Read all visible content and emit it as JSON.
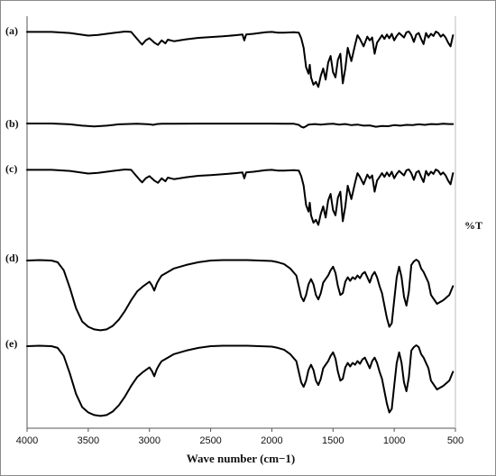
{
  "chart_data": {
    "type": "line",
    "xlabel": "Wave number (cm−1)",
    "ylabel": "%T",
    "xlim": [
      4000,
      500
    ],
    "x_reversed": true,
    "x_ticks": [
      4000,
      3500,
      3000,
      2500,
      2000,
      1500,
      1000,
      500
    ],
    "grid": false,
    "y_tick_labels": false,
    "series": [
      {
        "name": "(a)",
        "x": [
          4000,
          3800,
          3650,
          3500,
          3420,
          3300,
          3200,
          3150,
          3080,
          3060,
          3030,
          3000,
          2960,
          2930,
          2900,
          2870,
          2850,
          2800,
          2700,
          2600,
          2500,
          2400,
          2300,
          2240,
          2225,
          2210,
          2150,
          2050,
          2000,
          1950,
          1900,
          1820,
          1780,
          1760,
          1740,
          1720,
          1700,
          1690,
          1680,
          1660,
          1640,
          1620,
          1600,
          1580,
          1560,
          1540,
          1520,
          1500,
          1480,
          1460,
          1440,
          1420,
          1400,
          1380,
          1350,
          1320,
          1300,
          1280,
          1250,
          1220,
          1200,
          1180,
          1160,
          1140,
          1120,
          1100,
          1080,
          1060,
          1040,
          1020,
          1000,
          980,
          960,
          940,
          920,
          900,
          880,
          860,
          840,
          820,
          800,
          780,
          760,
          740,
          720,
          700,
          680,
          660,
          640,
          620,
          600,
          580,
          560,
          540,
          520
        ],
        "y": [
          0.5,
          0.5,
          2.0,
          5.5,
          4.5,
          2.0,
          0.0,
          0.5,
          14.0,
          17.5,
          12.0,
          9.0,
          15.0,
          18.0,
          12.0,
          16.0,
          11.0,
          13.0,
          10.5,
          8.5,
          7.5,
          6.5,
          5.0,
          4.0,
          12.0,
          4.0,
          3.0,
          1.0,
          0.5,
          1.5,
          1.5,
          1.0,
          1.5,
          9.0,
          22.0,
          48.0,
          57.0,
          45.0,
          62.0,
          72.0,
          68.0,
          75.0,
          60.0,
          50.0,
          65.0,
          42.0,
          33.0,
          55.0,
          62.0,
          38.0,
          30.0,
          70.0,
          50.0,
          22.0,
          40.0,
          18.0,
          5.0,
          10.0,
          20.0,
          7.0,
          12.0,
          8.0,
          30.0,
          15.0,
          10.0,
          5.0,
          10.0,
          4.0,
          9.0,
          3.0,
          12.0,
          6.0,
          2.0,
          5.0,
          8.0,
          1.0,
          0.0,
          5.0,
          14.0,
          4.0,
          2.0,
          10.0,
          17.0,
          2.0,
          8.0,
          3.0,
          6.0,
          0.0,
          2.0,
          7.0,
          4.0,
          8.0,
          15.0,
          20.0,
          5.0
        ]
      },
      {
        "name": "(b)",
        "x": [
          4000,
          3800,
          3650,
          3550,
          3450,
          3350,
          3250,
          3100,
          3000,
          2970,
          2940,
          2900,
          2800,
          2600,
          2400,
          2200,
          2000,
          1900,
          1820,
          1780,
          1760,
          1740,
          1720,
          1700,
          1650,
          1600,
          1550,
          1500,
          1450,
          1400,
          1350,
          1300,
          1250,
          1200,
          1150,
          1100,
          1050,
          1000,
          950,
          900,
          850,
          800,
          750,
          700,
          650,
          600,
          550,
          520
        ],
        "y": [
          0.0,
          0.0,
          1.5,
          4.0,
          5.5,
          4.0,
          1.5,
          0.5,
          1.5,
          2.5,
          1.0,
          0.5,
          0.3,
          0.2,
          0.2,
          0.2,
          0.2,
          0.3,
          0.5,
          2.5,
          6.0,
          7.5,
          5.0,
          2.0,
          1.0,
          2.0,
          1.0,
          0.5,
          2.0,
          1.0,
          3.0,
          2.0,
          4.0,
          3.5,
          6.0,
          4.5,
          5.0,
          3.0,
          4.0,
          2.5,
          3.0,
          1.5,
          2.5,
          1.0,
          1.5,
          0.5,
          1.0,
          1.0
        ]
      },
      {
        "name": "(c)",
        "x": [
          4000,
          3800,
          3650,
          3500,
          3420,
          3300,
          3200,
          3150,
          3080,
          3060,
          3030,
          3000,
          2960,
          2930,
          2900,
          2870,
          2850,
          2800,
          2700,
          2600,
          2500,
          2400,
          2300,
          2240,
          2225,
          2210,
          2150,
          2050,
          2000,
          1950,
          1900,
          1820,
          1780,
          1760,
          1740,
          1720,
          1700,
          1690,
          1680,
          1660,
          1640,
          1620,
          1600,
          1580,
          1560,
          1540,
          1520,
          1500,
          1480,
          1460,
          1440,
          1420,
          1400,
          1380,
          1350,
          1320,
          1300,
          1280,
          1250,
          1220,
          1200,
          1180,
          1160,
          1140,
          1120,
          1100,
          1080,
          1060,
          1040,
          1020,
          1000,
          980,
          960,
          940,
          920,
          900,
          880,
          860,
          840,
          820,
          800,
          780,
          760,
          740,
          720,
          700,
          680,
          660,
          640,
          620,
          600,
          580,
          560,
          540,
          520
        ],
        "y": [
          0.5,
          0.5,
          2.0,
          5.5,
          4.5,
          2.0,
          0.0,
          0.5,
          14.0,
          17.5,
          12.0,
          9.0,
          15.0,
          18.0,
          12.0,
          16.0,
          11.0,
          13.0,
          10.5,
          8.5,
          7.5,
          6.5,
          5.0,
          4.0,
          12.0,
          4.0,
          3.0,
          1.0,
          0.5,
          1.5,
          1.5,
          1.0,
          1.5,
          9.0,
          22.0,
          48.0,
          57.0,
          45.0,
          62.0,
          72.0,
          68.0,
          75.0,
          60.0,
          50.0,
          65.0,
          42.0,
          33.0,
          55.0,
          62.0,
          38.0,
          30.0,
          70.0,
          50.0,
          22.0,
          40.0,
          18.0,
          5.0,
          10.0,
          20.0,
          7.0,
          12.0,
          8.0,
          30.0,
          15.0,
          10.0,
          5.0,
          10.0,
          4.0,
          9.0,
          3.0,
          12.0,
          6.0,
          2.0,
          5.0,
          8.0,
          1.0,
          0.0,
          5.0,
          14.0,
          4.0,
          2.0,
          10.0,
          17.0,
          2.0,
          8.0,
          3.0,
          6.0,
          0.0,
          2.0,
          7.0,
          4.0,
          8.0,
          15.0,
          20.0,
          5.0
        ]
      },
      {
        "name": "(d)",
        "x": [
          4000,
          3900,
          3800,
          3750,
          3700,
          3650,
          3600,
          3550,
          3500,
          3450,
          3400,
          3350,
          3300,
          3250,
          3200,
          3150,
          3100,
          3050,
          3000,
          2980,
          2960,
          2940,
          2920,
          2900,
          2850,
          2800,
          2700,
          2600,
          2500,
          2400,
          2300,
          2200,
          2100,
          2000,
          1950,
          1900,
          1850,
          1800,
          1780,
          1760,
          1740,
          1720,
          1700,
          1680,
          1660,
          1640,
          1620,
          1600,
          1580,
          1560,
          1540,
          1520,
          1500,
          1480,
          1460,
          1440,
          1420,
          1400,
          1380,
          1360,
          1340,
          1320,
          1300,
          1280,
          1260,
          1240,
          1220,
          1200,
          1180,
          1160,
          1140,
          1120,
          1100,
          1080,
          1060,
          1040,
          1020,
          1000,
          980,
          960,
          940,
          920,
          900,
          880,
          860,
          840,
          820,
          800,
          780,
          760,
          740,
          720,
          700,
          650,
          600,
          550,
          520
        ],
        "y": [
          1.0,
          0.5,
          1.0,
          3.0,
          12.0,
          32.0,
          55.0,
          70.0,
          76.0,
          79.0,
          80.0,
          79.0,
          75.0,
          68.0,
          58.0,
          46.0,
          36.0,
          30.0,
          25.0,
          29.0,
          35.0,
          27.0,
          22.0,
          18.0,
          14.0,
          10.0,
          6.0,
          3.0,
          1.0,
          0.5,
          0.5,
          0.5,
          1.0,
          1.5,
          3.0,
          5.0,
          10.0,
          18.0,
          30.0,
          42.0,
          47.0,
          40.0,
          28.0,
          22.0,
          28.0,
          40.0,
          45.0,
          38.0,
          26.0,
          22.0,
          18.0,
          12.0,
          8.0,
          15.0,
          30.0,
          40.0,
          38.0,
          25.0,
          20.0,
          24.0,
          20.0,
          22.0,
          18.0,
          21.0,
          16.0,
          14.0,
          20.0,
          26.0,
          18.0,
          14.0,
          20.0,
          30.0,
          38.0,
          52.0,
          66.0,
          76.0,
          72.0,
          46.0,
          20.0,
          8.0,
          20.0,
          42.0,
          52.0,
          36.0,
          6.0,
          2.0,
          0.0,
          2.0,
          10.0,
          14.0,
          20.0,
          26.0,
          40.0,
          50.0,
          46.0,
          40.0,
          30.0
        ]
      },
      {
        "name": "(e)",
        "x": [
          4000,
          3900,
          3800,
          3750,
          3700,
          3650,
          3600,
          3550,
          3500,
          3450,
          3400,
          3350,
          3300,
          3250,
          3200,
          3150,
          3100,
          3050,
          3000,
          2980,
          2960,
          2940,
          2920,
          2900,
          2850,
          2800,
          2700,
          2600,
          2500,
          2400,
          2300,
          2200,
          2100,
          2000,
          1950,
          1900,
          1850,
          1800,
          1780,
          1760,
          1740,
          1720,
          1700,
          1680,
          1660,
          1640,
          1620,
          1600,
          1580,
          1560,
          1540,
          1520,
          1500,
          1480,
          1460,
          1440,
          1420,
          1400,
          1380,
          1360,
          1340,
          1320,
          1300,
          1280,
          1260,
          1240,
          1220,
          1200,
          1180,
          1160,
          1140,
          1120,
          1100,
          1080,
          1060,
          1040,
          1020,
          1000,
          980,
          960,
          940,
          920,
          900,
          880,
          860,
          840,
          820,
          800,
          780,
          760,
          740,
          720,
          700,
          650,
          600,
          550,
          520
        ],
        "y": [
          1.0,
          0.5,
          1.0,
          3.0,
          12.0,
          32.0,
          55.0,
          70.0,
          76.0,
          79.0,
          80.0,
          79.0,
          75.0,
          68.0,
          58.0,
          46.0,
          36.0,
          30.0,
          25.0,
          29.0,
          35.0,
          27.0,
          22.0,
          18.0,
          14.0,
          10.0,
          6.0,
          3.0,
          1.0,
          0.5,
          0.5,
          0.5,
          1.0,
          1.5,
          3.0,
          5.0,
          10.0,
          18.0,
          30.0,
          42.0,
          47.0,
          40.0,
          28.0,
          22.0,
          28.0,
          40.0,
          45.0,
          38.0,
          26.0,
          22.0,
          18.0,
          12.0,
          8.0,
          15.0,
          30.0,
          40.0,
          38.0,
          25.0,
          20.0,
          24.0,
          20.0,
          22.0,
          18.0,
          21.0,
          16.0,
          14.0,
          20.0,
          26.0,
          18.0,
          14.0,
          20.0,
          30.0,
          38.0,
          52.0,
          66.0,
          76.0,
          72.0,
          46.0,
          20.0,
          8.0,
          20.0,
          42.0,
          52.0,
          36.0,
          6.0,
          2.0,
          0.0,
          2.0,
          10.0,
          14.0,
          20.0,
          26.0,
          40.0,
          50.0,
          46.0,
          40.0,
          30.0
        ]
      }
    ],
    "line_color": "#000000"
  }
}
